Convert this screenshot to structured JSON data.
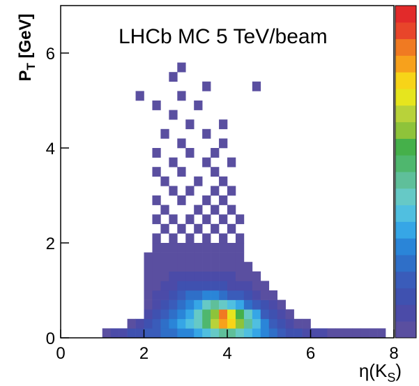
{
  "chart_data": {
    "type": "heatmap",
    "title": "LHCb MC 5 TeV/beam",
    "xlabel": [
      "η(K",
      "S",
      ")"
    ],
    "ylabel": [
      "P",
      "T",
      " [GeV]"
    ],
    "xlim": [
      0,
      8
    ],
    "ylim": [
      0,
      7
    ],
    "xticks": [
      0,
      2,
      4,
      6,
      8
    ],
    "yticks": [
      0,
      2,
      4,
      6
    ],
    "zlim": [
      0,
      20
    ],
    "colors": [
      "#5a4fa0",
      "#4b4ba8",
      "#3f51b0",
      "#3a5cba",
      "#2f6fc8",
      "#2a85d8",
      "#36a6e6",
      "#50bfe0",
      "#66c9c6",
      "#5fbf9a",
      "#4fb76e",
      "#45b04a",
      "#8ec33a",
      "#b8d23a",
      "#e6e51e",
      "#f7d418",
      "#f7a11c",
      "#f07a22",
      "#e8452a",
      "#e22a2a"
    ],
    "cells": [
      [
        1.0,
        0.0,
        1
      ],
      [
        1.2,
        0.0,
        2
      ],
      [
        1.4,
        0.0,
        2
      ],
      [
        1.6,
        0.0,
        3
      ],
      [
        1.8,
        0.0,
        3
      ],
      [
        2.0,
        0.0,
        4
      ],
      [
        2.2,
        0.0,
        4
      ],
      [
        2.4,
        0.0,
        5
      ],
      [
        2.6,
        0.0,
        5
      ],
      [
        2.8,
        0.0,
        6
      ],
      [
        3.0,
        0.0,
        6
      ],
      [
        3.2,
        0.0,
        7
      ],
      [
        3.4,
        0.0,
        8
      ],
      [
        3.6,
        0.0,
        9
      ],
      [
        3.8,
        0.0,
        10
      ],
      [
        4.0,
        0.0,
        10
      ],
      [
        4.2,
        0.0,
        9
      ],
      [
        4.4,
        0.0,
        8
      ],
      [
        4.6,
        0.0,
        7
      ],
      [
        4.8,
        0.0,
        6
      ],
      [
        5.0,
        0.0,
        5
      ],
      [
        5.2,
        0.0,
        4
      ],
      [
        5.4,
        0.0,
        3
      ],
      [
        5.6,
        0.0,
        3
      ],
      [
        5.8,
        0.0,
        2
      ],
      [
        6.0,
        0.0,
        2
      ],
      [
        6.2,
        0.0,
        2
      ],
      [
        6.4,
        0.0,
        1
      ],
      [
        6.6,
        0.0,
        1
      ],
      [
        6.8,
        0.0,
        1
      ],
      [
        7.0,
        0.0,
        1
      ],
      [
        7.2,
        0.0,
        1
      ],
      [
        7.4,
        0.0,
        1
      ],
      [
        7.6,
        0.0,
        1
      ],
      [
        1.6,
        0.2,
        1
      ],
      [
        1.8,
        0.2,
        2
      ],
      [
        2.0,
        0.2,
        3
      ],
      [
        2.2,
        0.2,
        4
      ],
      [
        2.4,
        0.2,
        5
      ],
      [
        2.6,
        0.2,
        6
      ],
      [
        2.8,
        0.2,
        7
      ],
      [
        3.0,
        0.2,
        8
      ],
      [
        3.2,
        0.2,
        9
      ],
      [
        3.4,
        0.2,
        11
      ],
      [
        3.6,
        0.2,
        14
      ],
      [
        3.8,
        0.2,
        17
      ],
      [
        4.0,
        0.2,
        16
      ],
      [
        4.2,
        0.2,
        13
      ],
      [
        4.4,
        0.2,
        10
      ],
      [
        4.6,
        0.2,
        8
      ],
      [
        4.8,
        0.2,
        6
      ],
      [
        5.0,
        0.2,
        4
      ],
      [
        5.2,
        0.2,
        3
      ],
      [
        5.4,
        0.2,
        2
      ],
      [
        5.6,
        0.2,
        1
      ],
      [
        5.8,
        0.2,
        1
      ],
      [
        2.0,
        0.4,
        2
      ],
      [
        2.2,
        0.4,
        3
      ],
      [
        2.4,
        0.4,
        4
      ],
      [
        2.6,
        0.4,
        5
      ],
      [
        2.8,
        0.4,
        6
      ],
      [
        3.0,
        0.4,
        7
      ],
      [
        3.2,
        0.4,
        9
      ],
      [
        3.4,
        0.4,
        11
      ],
      [
        3.6,
        0.4,
        13
      ],
      [
        3.8,
        0.4,
        18
      ],
      [
        4.0,
        0.4,
        15
      ],
      [
        4.2,
        0.4,
        12
      ],
      [
        4.4,
        0.4,
        9
      ],
      [
        4.6,
        0.4,
        7
      ],
      [
        4.8,
        0.4,
        4
      ],
      [
        5.0,
        0.4,
        3
      ],
      [
        5.2,
        0.4,
        2
      ],
      [
        5.4,
        0.4,
        1
      ],
      [
        2.0,
        0.6,
        1
      ],
      [
        2.2,
        0.6,
        2
      ],
      [
        2.4,
        0.6,
        3
      ],
      [
        2.6,
        0.6,
        4
      ],
      [
        2.8,
        0.6,
        5
      ],
      [
        3.0,
        0.6,
        6
      ],
      [
        3.2,
        0.6,
        7
      ],
      [
        3.4,
        0.6,
        9
      ],
      [
        3.6,
        0.6,
        10
      ],
      [
        3.8,
        0.6,
        9
      ],
      [
        4.0,
        0.6,
        8
      ],
      [
        4.2,
        0.6,
        7
      ],
      [
        4.4,
        0.6,
        5
      ],
      [
        4.6,
        0.6,
        4
      ],
      [
        4.8,
        0.6,
        3
      ],
      [
        5.0,
        0.6,
        2
      ],
      [
        5.2,
        0.6,
        1
      ],
      [
        2.0,
        0.8,
        1
      ],
      [
        2.2,
        0.8,
        2
      ],
      [
        2.4,
        0.8,
        2
      ],
      [
        2.6,
        0.8,
        3
      ],
      [
        2.8,
        0.8,
        4
      ],
      [
        3.0,
        0.8,
        5
      ],
      [
        3.2,
        0.8,
        5
      ],
      [
        3.4,
        0.8,
        6
      ],
      [
        3.6,
        0.8,
        6
      ],
      [
        3.8,
        0.8,
        5
      ],
      [
        4.0,
        0.8,
        4
      ],
      [
        4.2,
        0.8,
        4
      ],
      [
        4.4,
        0.8,
        3
      ],
      [
        4.6,
        0.8,
        2
      ],
      [
        4.8,
        0.8,
        1
      ],
      [
        5.0,
        0.8,
        1
      ],
      [
        2.0,
        1.0,
        1
      ],
      [
        2.2,
        1.0,
        1
      ],
      [
        2.4,
        1.0,
        2
      ],
      [
        2.6,
        1.0,
        2
      ],
      [
        2.8,
        1.0,
        3
      ],
      [
        3.0,
        1.0,
        3
      ],
      [
        3.2,
        1.0,
        3
      ],
      [
        3.4,
        1.0,
        3
      ],
      [
        3.6,
        1.0,
        3
      ],
      [
        3.8,
        1.0,
        3
      ],
      [
        4.0,
        1.0,
        2
      ],
      [
        4.2,
        1.0,
        2
      ],
      [
        4.4,
        1.0,
        2
      ],
      [
        4.6,
        1.0,
        1
      ],
      [
        4.8,
        1.0,
        1
      ],
      [
        2.0,
        1.2,
        1
      ],
      [
        2.2,
        1.2,
        1
      ],
      [
        2.4,
        1.2,
        1
      ],
      [
        2.6,
        1.2,
        2
      ],
      [
        2.8,
        1.2,
        2
      ],
      [
        3.0,
        1.2,
        2
      ],
      [
        3.2,
        1.2,
        2
      ],
      [
        3.4,
        1.2,
        2
      ],
      [
        3.6,
        1.2,
        2
      ],
      [
        3.8,
        1.2,
        2
      ],
      [
        4.0,
        1.2,
        2
      ],
      [
        4.2,
        1.2,
        1
      ],
      [
        4.4,
        1.2,
        1
      ],
      [
        4.6,
        1.2,
        1
      ],
      [
        2.0,
        1.4,
        1
      ],
      [
        2.2,
        1.4,
        1
      ],
      [
        2.4,
        1.4,
        1
      ],
      [
        2.6,
        1.4,
        1
      ],
      [
        2.8,
        1.4,
        1
      ],
      [
        3.0,
        1.4,
        1
      ],
      [
        3.2,
        1.4,
        1
      ],
      [
        3.4,
        1.4,
        1
      ],
      [
        3.6,
        1.4,
        1
      ],
      [
        3.8,
        1.4,
        1
      ],
      [
        4.0,
        1.4,
        1
      ],
      [
        4.2,
        1.4,
        1
      ],
      [
        4.4,
        1.4,
        1
      ],
      [
        2.0,
        1.6,
        1
      ],
      [
        2.2,
        1.6,
        1
      ],
      [
        2.4,
        1.6,
        1
      ],
      [
        2.6,
        1.6,
        1
      ],
      [
        2.8,
        1.6,
        1
      ],
      [
        3.0,
        1.6,
        1
      ],
      [
        3.2,
        1.6,
        1
      ],
      [
        3.4,
        1.6,
        1
      ],
      [
        3.6,
        1.6,
        1
      ],
      [
        3.8,
        1.6,
        1
      ],
      [
        4.0,
        1.6,
        1
      ],
      [
        4.2,
        1.6,
        1
      ],
      [
        2.2,
        1.8,
        1
      ],
      [
        2.4,
        1.8,
        1
      ],
      [
        2.6,
        1.8,
        1
      ],
      [
        2.8,
        1.8,
        1
      ],
      [
        3.0,
        1.8,
        1
      ],
      [
        3.2,
        1.8,
        1
      ],
      [
        3.4,
        1.8,
        1
      ],
      [
        3.6,
        1.8,
        1
      ],
      [
        3.8,
        1.8,
        1
      ],
      [
        4.0,
        1.8,
        1
      ],
      [
        4.2,
        1.8,
        1
      ],
      [
        2.2,
        2.0,
        1
      ],
      [
        2.6,
        2.0,
        1
      ],
      [
        3.0,
        2.0,
        1
      ],
      [
        3.4,
        2.0,
        1
      ],
      [
        3.8,
        2.0,
        1
      ],
      [
        4.2,
        2.0,
        1
      ],
      [
        2.4,
        2.2,
        1
      ],
      [
        2.8,
        2.2,
        1
      ],
      [
        3.2,
        2.2,
        1
      ],
      [
        3.6,
        2.2,
        1
      ],
      [
        4.0,
        2.2,
        1
      ],
      [
        2.2,
        2.4,
        1
      ],
      [
        2.6,
        2.4,
        1
      ],
      [
        3.0,
        2.4,
        1
      ],
      [
        3.4,
        2.4,
        1
      ],
      [
        3.8,
        2.4,
        1
      ],
      [
        4.2,
        2.4,
        1
      ],
      [
        2.4,
        2.6,
        1
      ],
      [
        3.2,
        2.6,
        1
      ],
      [
        3.6,
        2.6,
        1
      ],
      [
        4.0,
        2.6,
        1
      ],
      [
        2.2,
        2.8,
        1
      ],
      [
        2.8,
        2.8,
        1
      ],
      [
        3.4,
        2.8,
        1
      ],
      [
        3.8,
        2.8,
        1
      ],
      [
        2.6,
        3.0,
        1
      ],
      [
        3.0,
        3.0,
        1
      ],
      [
        3.6,
        3.0,
        1
      ],
      [
        4.0,
        3.0,
        1
      ],
      [
        2.4,
        3.2,
        1
      ],
      [
        3.2,
        3.2,
        1
      ],
      [
        3.8,
        3.2,
        1
      ],
      [
        2.2,
        3.4,
        1
      ],
      [
        2.8,
        3.4,
        1
      ],
      [
        3.6,
        3.4,
        1
      ],
      [
        2.6,
        3.6,
        1
      ],
      [
        3.4,
        3.6,
        1
      ],
      [
        4.0,
        3.6,
        1
      ],
      [
        2.2,
        3.8,
        1
      ],
      [
        3.0,
        3.8,
        1
      ],
      [
        3.6,
        3.8,
        1
      ],
      [
        2.8,
        4.0,
        1
      ],
      [
        3.8,
        4.0,
        1
      ],
      [
        2.4,
        4.2,
        1
      ],
      [
        3.4,
        4.2,
        1
      ],
      [
        3.0,
        4.4,
        1
      ],
      [
        3.8,
        4.4,
        1
      ],
      [
        2.6,
        4.6,
        1
      ],
      [
        2.2,
        4.8,
        1
      ],
      [
        3.2,
        4.8,
        1
      ],
      [
        1.8,
        5.0,
        1
      ],
      [
        2.8,
        5.0,
        1
      ],
      [
        3.4,
        5.2,
        1
      ],
      [
        4.6,
        5.2,
        1
      ],
      [
        2.6,
        5.4,
        1
      ],
      [
        2.8,
        5.6,
        1
      ]
    ]
  }
}
